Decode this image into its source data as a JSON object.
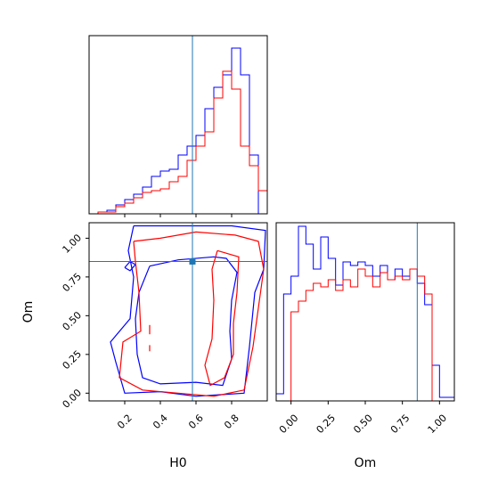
{
  "chart_data": [
    {
      "type": "histogram",
      "panel": "H0 marginal",
      "xlim": [
        0.0,
        1.0
      ],
      "truth": 0.58,
      "truth_color": "#1f77b4",
      "bins": 20,
      "series": [
        {
          "color": "#0000ff",
          "heights": [
            0.0,
            0.01,
            0.02,
            0.05,
            0.08,
            0.11,
            0.15,
            0.21,
            0.24,
            0.25,
            0.33,
            0.38,
            0.44,
            0.59,
            0.71,
            0.78,
            0.93,
            0.78,
            0.33,
            0.0
          ]
        },
        {
          "color": "#ff0000",
          "heights": [
            0.0,
            0.01,
            0.01,
            0.04,
            0.06,
            0.09,
            0.12,
            0.13,
            0.14,
            0.18,
            0.21,
            0.3,
            0.38,
            0.46,
            0.65,
            0.8,
            0.7,
            0.38,
            0.27,
            0.13
          ]
        }
      ]
    },
    {
      "type": "contour",
      "panel": "H0 vs Om",
      "xlabel": "H0",
      "ylabel": "Om",
      "xlim": [
        0.0,
        1.0
      ],
      "ylim": [
        -0.05,
        1.1
      ],
      "xticks": [
        "0.2",
        "0.4",
        "0.6",
        "0.8"
      ],
      "xtick_values": [
        0.2,
        0.4,
        0.6,
        0.8
      ],
      "yticks": [
        "0.00",
        "0.25",
        "0.50",
        "0.75",
        "1.00"
      ],
      "ytick_values": [
        0.0,
        0.25,
        0.5,
        0.75,
        1.0
      ],
      "truth": [
        0.58,
        0.85
      ],
      "truth_color": "#1f77b4",
      "contours": [
        {
          "color": "#0000ff",
          "points": [
            [
              0.25,
              1.08
            ],
            [
              0.8,
              1.08
            ],
            [
              0.99,
              1.05
            ],
            [
              0.98,
              0.8
            ],
            [
              0.93,
              0.65
            ],
            [
              0.9,
              0.3
            ],
            [
              0.87,
              0.0
            ],
            [
              0.6,
              -0.02
            ],
            [
              0.4,
              0.01
            ],
            [
              0.2,
              0.0
            ],
            [
              0.15,
              0.2
            ],
            [
              0.12,
              0.33
            ],
            [
              0.23,
              0.48
            ],
            [
              0.25,
              0.75
            ],
            [
              0.22,
              0.92
            ],
            [
              0.25,
              1.08
            ]
          ]
        },
        {
          "color": "#0000ff",
          "points": [
            [
              0.34,
              0.82
            ],
            [
              0.5,
              0.86
            ],
            [
              0.7,
              0.88
            ],
            [
              0.77,
              0.87
            ],
            [
              0.83,
              0.78
            ],
            [
              0.8,
              0.6
            ],
            [
              0.79,
              0.4
            ],
            [
              0.8,
              0.22
            ],
            [
              0.75,
              0.05
            ],
            [
              0.6,
              0.07
            ],
            [
              0.4,
              0.06
            ],
            [
              0.3,
              0.1
            ],
            [
              0.27,
              0.25
            ],
            [
              0.26,
              0.48
            ],
            [
              0.28,
              0.65
            ],
            [
              0.34,
              0.82
            ]
          ]
        },
        {
          "color": "#0000ff",
          "points": [
            [
              0.2,
              0.81
            ],
            [
              0.23,
              0.85
            ],
            [
              0.26,
              0.83
            ],
            [
              0.23,
              0.79
            ],
            [
              0.2,
              0.81
            ]
          ]
        },
        {
          "color": "#ff0000",
          "points": [
            [
              0.25,
              0.98
            ],
            [
              0.4,
              1.0
            ],
            [
              0.6,
              1.04
            ],
            [
              0.82,
              1.02
            ],
            [
              0.95,
              0.98
            ],
            [
              0.98,
              0.8
            ],
            [
              0.95,
              0.55
            ],
            [
              0.92,
              0.3
            ],
            [
              0.87,
              0.02
            ],
            [
              0.7,
              -0.02
            ],
            [
              0.5,
              0.0
            ],
            [
              0.3,
              0.02
            ],
            [
              0.17,
              0.1
            ],
            [
              0.19,
              0.33
            ],
            [
              0.29,
              0.4
            ],
            [
              0.28,
              0.65
            ],
            [
              0.26,
              0.85
            ],
            [
              0.25,
              0.98
            ]
          ]
        },
        {
          "color": "#ff0000",
          "points": [
            [
              0.72,
              0.92
            ],
            [
              0.84,
              0.88
            ],
            [
              0.83,
              0.65
            ],
            [
              0.81,
              0.45
            ],
            [
              0.81,
              0.25
            ],
            [
              0.76,
              0.1
            ],
            [
              0.68,
              0.05
            ],
            [
              0.65,
              0.18
            ],
            [
              0.69,
              0.35
            ],
            [
              0.7,
              0.6
            ],
            [
              0.69,
              0.8
            ],
            [
              0.72,
              0.92
            ]
          ]
        },
        {
          "color": "#ff0000",
          "points": [
            [
              0.34,
              0.44
            ],
            [
              0.34,
              0.38
            ]
          ]
        },
        {
          "color": "#ff0000",
          "points": [
            [
              0.34,
              0.31
            ],
            [
              0.34,
              0.27
            ]
          ]
        }
      ]
    },
    {
      "type": "histogram",
      "panel": "Om marginal",
      "xlabel": "Om",
      "xlim": [
        -0.1,
        1.1
      ],
      "xticks": [
        "0.00",
        "0.25",
        "0.50",
        "0.75",
        "1.00"
      ],
      "xtick_values": [
        0.0,
        0.25,
        0.5,
        0.75,
        1.0
      ],
      "truth": 0.85,
      "truth_color": "#1f77b4",
      "bins": 24,
      "series": [
        {
          "color": "#0000ff",
          "heights": [
            0.04,
            0.6,
            0.7,
            0.98,
            0.88,
            0.74,
            0.92,
            0.8,
            0.65,
            0.78,
            0.76,
            0.78,
            0.76,
            0.7,
            0.76,
            0.68,
            0.74,
            0.7,
            0.74,
            0.66,
            0.54,
            0.2,
            0.02,
            0.02
          ]
        },
        {
          "color": "#ff0000",
          "heights": [
            0.0,
            0.0,
            0.5,
            0.56,
            0.62,
            0.66,
            0.64,
            0.68,
            0.62,
            0.68,
            0.64,
            0.74,
            0.7,
            0.64,
            0.72,
            0.68,
            0.7,
            0.68,
            0.74,
            0.7,
            0.6,
            0.0,
            0.0,
            0.0
          ]
        }
      ]
    }
  ]
}
